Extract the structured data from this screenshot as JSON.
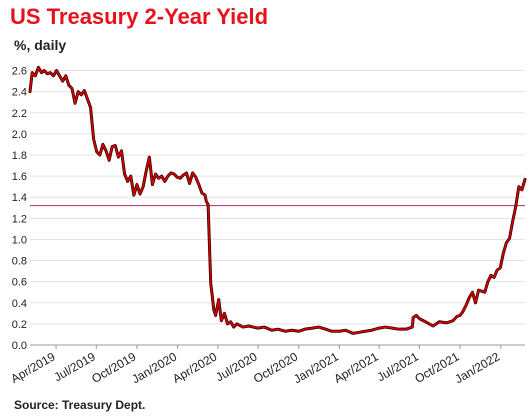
{
  "chart_data": {
    "type": "line",
    "title": "US Treasury 2-Year Yield",
    "subtitle": "%, daily",
    "source": "Source: Treasury Dept.",
    "xlabel": "",
    "ylabel": "",
    "ylim": [
      0,
      2.7
    ],
    "xlim": [
      "2019-02-01",
      "2022-02-25"
    ],
    "grid": true,
    "legend": "none",
    "yticks": [
      "0.0",
      "0.2",
      "0.4",
      "0.6",
      "0.8",
      "1.0",
      "1.2",
      "1.4",
      "1.6",
      "1.8",
      "2.0",
      "2.2",
      "2.4",
      "2.6"
    ],
    "xticks": [
      {
        "date": "2019-04-01",
        "label": "Apr/2019"
      },
      {
        "date": "2019-07-01",
        "label": "Jul/2019"
      },
      {
        "date": "2019-10-01",
        "label": "Oct/2019"
      },
      {
        "date": "2020-01-01",
        "label": "Jan/2020"
      },
      {
        "date": "2020-04-01",
        "label": "Apr/2020"
      },
      {
        "date": "2020-07-01",
        "label": "Jul/2020"
      },
      {
        "date": "2020-10-01",
        "label": "Oct/2020"
      },
      {
        "date": "2021-01-01",
        "label": "Jan/2021"
      },
      {
        "date": "2021-04-01",
        "label": "Apr/2021"
      },
      {
        "date": "2021-07-01",
        "label": "Jul/2021"
      },
      {
        "date": "2021-10-01",
        "label": "Oct/2021"
      },
      {
        "date": "2022-01-01",
        "label": "Jan/2022"
      }
    ],
    "reference_line": {
      "y": 1.32,
      "color": "#b0306a"
    },
    "series": [
      {
        "color": "#e00000",
        "points": [
          [
            "2019-02-01",
            2.4
          ],
          [
            "2019-02-06",
            2.58
          ],
          [
            "2019-02-13",
            2.55
          ],
          [
            "2019-02-20",
            2.63
          ],
          [
            "2019-02-27",
            2.58
          ],
          [
            "2019-03-05",
            2.6
          ],
          [
            "2019-03-12",
            2.57
          ],
          [
            "2019-03-19",
            2.58
          ],
          [
            "2019-03-26",
            2.55
          ],
          [
            "2019-04-02",
            2.6
          ],
          [
            "2019-04-09",
            2.55
          ],
          [
            "2019-04-16",
            2.5
          ],
          [
            "2019-04-23",
            2.55
          ],
          [
            "2019-04-30",
            2.46
          ],
          [
            "2019-05-07",
            2.43
          ],
          [
            "2019-05-14",
            2.29
          ],
          [
            "2019-05-21",
            2.4
          ],
          [
            "2019-05-28",
            2.37
          ],
          [
            "2019-06-04",
            2.41
          ],
          [
            "2019-06-11",
            2.33
          ],
          [
            "2019-06-18",
            2.25
          ],
          [
            "2019-06-25",
            1.95
          ],
          [
            "2019-07-02",
            1.83
          ],
          [
            "2019-07-09",
            1.8
          ],
          [
            "2019-07-16",
            1.9
          ],
          [
            "2019-07-23",
            1.84
          ],
          [
            "2019-07-30",
            1.75
          ],
          [
            "2019-08-06",
            1.88
          ],
          [
            "2019-08-13",
            1.89
          ],
          [
            "2019-08-20",
            1.78
          ],
          [
            "2019-08-27",
            1.84
          ],
          [
            "2019-09-03",
            1.62
          ],
          [
            "2019-09-10",
            1.55
          ],
          [
            "2019-09-17",
            1.6
          ],
          [
            "2019-09-24",
            1.42
          ],
          [
            "2019-10-01",
            1.52
          ],
          [
            "2019-10-08",
            1.43
          ],
          [
            "2019-10-15",
            1.5
          ],
          [
            "2019-10-22",
            1.65
          ],
          [
            "2019-10-29",
            1.78
          ],
          [
            "2019-11-05",
            1.52
          ],
          [
            "2019-11-12",
            1.62
          ],
          [
            "2019-11-19",
            1.58
          ],
          [
            "2019-11-26",
            1.6
          ],
          [
            "2019-12-03",
            1.55
          ],
          [
            "2019-12-10",
            1.6
          ],
          [
            "2019-12-17",
            1.63
          ],
          [
            "2019-12-24",
            1.62
          ],
          [
            "2019-12-31",
            1.59
          ],
          [
            "2020-01-07",
            1.58
          ],
          [
            "2020-01-14",
            1.61
          ],
          [
            "2020-01-21",
            1.63
          ],
          [
            "2020-01-28",
            1.53
          ],
          [
            "2020-02-04",
            1.63
          ],
          [
            "2020-02-11",
            1.59
          ],
          [
            "2020-02-18",
            1.52
          ],
          [
            "2020-02-25",
            1.44
          ],
          [
            "2020-03-03",
            1.42
          ],
          [
            "2020-03-06",
            1.36
          ],
          [
            "2020-03-10",
            1.33
          ],
          [
            "2020-03-13",
            0.95
          ],
          [
            "2020-03-16",
            0.58
          ],
          [
            "2020-03-19",
            0.48
          ],
          [
            "2020-03-23",
            0.33
          ],
          [
            "2020-03-27",
            0.28
          ],
          [
            "2020-04-03",
            0.43
          ],
          [
            "2020-04-09",
            0.23
          ],
          [
            "2020-04-16",
            0.3
          ],
          [
            "2020-04-23",
            0.2
          ],
          [
            "2020-04-30",
            0.22
          ],
          [
            "2020-05-07",
            0.17
          ],
          [
            "2020-05-14",
            0.2
          ],
          [
            "2020-05-28",
            0.17
          ],
          [
            "2020-06-10",
            0.18
          ],
          [
            "2020-06-30",
            0.16
          ],
          [
            "2020-07-15",
            0.17
          ],
          [
            "2020-08-01",
            0.14
          ],
          [
            "2020-08-15",
            0.15
          ],
          [
            "2020-09-01",
            0.13
          ],
          [
            "2020-09-15",
            0.14
          ],
          [
            "2020-10-01",
            0.13
          ],
          [
            "2020-10-15",
            0.15
          ],
          [
            "2020-11-01",
            0.16
          ],
          [
            "2020-11-15",
            0.17
          ],
          [
            "2020-12-01",
            0.15
          ],
          [
            "2020-12-15",
            0.13
          ],
          [
            "2021-01-01",
            0.13
          ],
          [
            "2021-01-15",
            0.14
          ],
          [
            "2021-02-01",
            0.11
          ],
          [
            "2021-02-15",
            0.12
          ],
          [
            "2021-03-01",
            0.13
          ],
          [
            "2021-03-15",
            0.14
          ],
          [
            "2021-04-01",
            0.16
          ],
          [
            "2021-04-15",
            0.17
          ],
          [
            "2021-05-01",
            0.16
          ],
          [
            "2021-05-15",
            0.15
          ],
          [
            "2021-06-01",
            0.15
          ],
          [
            "2021-06-15",
            0.17
          ],
          [
            "2021-06-17",
            0.26
          ],
          [
            "2021-06-24",
            0.28
          ],
          [
            "2021-07-01",
            0.25
          ],
          [
            "2021-07-15",
            0.22
          ],
          [
            "2021-08-01",
            0.18
          ],
          [
            "2021-08-15",
            0.22
          ],
          [
            "2021-09-01",
            0.21
          ],
          [
            "2021-09-15",
            0.23
          ],
          [
            "2021-09-24",
            0.27
          ],
          [
            "2021-10-01",
            0.28
          ],
          [
            "2021-10-08",
            0.32
          ],
          [
            "2021-10-15",
            0.38
          ],
          [
            "2021-10-22",
            0.45
          ],
          [
            "2021-10-29",
            0.5
          ],
          [
            "2021-11-05",
            0.4
          ],
          [
            "2021-11-12",
            0.52
          ],
          [
            "2021-11-19",
            0.51
          ],
          [
            "2021-11-26",
            0.5
          ],
          [
            "2021-12-03",
            0.6
          ],
          [
            "2021-12-10",
            0.66
          ],
          [
            "2021-12-17",
            0.64
          ],
          [
            "2021-12-24",
            0.71
          ],
          [
            "2021-12-31",
            0.73
          ],
          [
            "2022-01-07",
            0.87
          ],
          [
            "2022-01-14",
            0.97
          ],
          [
            "2022-01-21",
            1.01
          ],
          [
            "2022-01-28",
            1.17
          ],
          [
            "2022-02-04",
            1.31
          ],
          [
            "2022-02-11",
            1.5
          ],
          [
            "2022-02-18",
            1.47
          ],
          [
            "2022-02-25",
            1.57
          ]
        ]
      }
    ]
  }
}
